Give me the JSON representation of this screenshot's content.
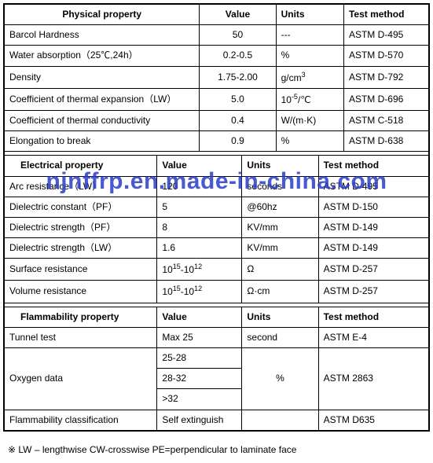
{
  "table1": {
    "headers": [
      "Physical property",
      "Value",
      "Units",
      "Test method"
    ],
    "col_widths": [
      "46%",
      "18%",
      "16%",
      "20%"
    ],
    "rows": [
      {
        "prop": "Barcol Hardness",
        "value": "50",
        "units": "---",
        "method": "ASTM D-495"
      },
      {
        "prop": "Water absorption（25℃,24h）",
        "value": "0.2-0.5",
        "units": "%",
        "method": "ASTM D-570"
      },
      {
        "prop": "Density",
        "value": "1.75-2.00",
        "units_html": "g/cm<sup>3</sup>",
        "method": "ASTM D-792"
      },
      {
        "prop": "Coefficient of thermal expansion（LW）",
        "value": "5.0",
        "units_html": "10<sup>-5</sup>/℃",
        "method": "ASTM D-696"
      },
      {
        "prop": "Coefficient of thermal conductivity",
        "value": "0.4",
        "units": "W/(m·K)",
        "method": "ASTM C-518"
      },
      {
        "prop": "Elongation to break",
        "value": "0.9",
        "units": "%",
        "method": "ASTM D-638"
      }
    ]
  },
  "table2": {
    "headers": [
      "Electrical property",
      "Value",
      "Units",
      "Test method"
    ],
    "col_widths": [
      "36%",
      "20%",
      "18%",
      "26%"
    ],
    "rows": [
      {
        "prop": "Arc resistance（LW）",
        "value": "120",
        "units": "seconds",
        "method": "ASTM D-495"
      },
      {
        "prop": "Dielectric constant（PF）",
        "value": "5",
        "units": "@60hz",
        "method": "ASTM D-150"
      },
      {
        "prop": "Dielectric strength（PF）",
        "value": "8",
        "units": "KV/mm",
        "method": "ASTM D-149"
      },
      {
        "prop": "Dielectric strength（LW）",
        "value": "1.6",
        "units": "KV/mm",
        "method": "ASTM D-149"
      },
      {
        "prop": "Surface resistance",
        "value_html": "10<sup>15</sup>-10<sup>12</sup>",
        "units": "Ω",
        "method": "ASTM D-257"
      },
      {
        "prop": "Volume resistance",
        "value_html": "10<sup>15</sup>-10<sup>12</sup>",
        "units": "Ω·cm",
        "method": "ASTM D-257"
      }
    ]
  },
  "table3": {
    "headers": [
      "Flammability property",
      "Value",
      "Units",
      "Test method"
    ],
    "col_widths": [
      "36%",
      "20%",
      "18%",
      "26%"
    ],
    "tunnel": {
      "prop": "Tunnel test",
      "value": "Max 25",
      "units": "second",
      "method": "ASTM E-4"
    },
    "oxygen": {
      "prop": "Oxygen data",
      "values": [
        "25-28",
        "28-32",
        ">32"
      ],
      "units": "%",
      "method": "ASTM 2863"
    },
    "flam_class": {
      "prop": "Flammability classification",
      "value": "Self extinguish",
      "units": "",
      "method": "ASTM D635"
    }
  },
  "footnote": "※ LW – lengthwise   CW-crosswise   PE=perpendicular to laminate face",
  "watermark": "njnffrp.en.made-in-china.com",
  "colors": {
    "border": "#000000",
    "bg": "#ffffff",
    "watermark": "#2a3ec8"
  }
}
